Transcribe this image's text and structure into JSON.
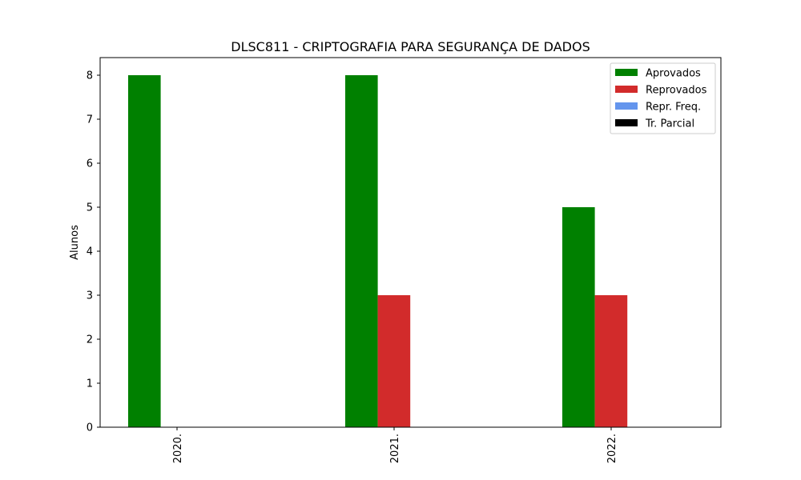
{
  "chart_data": {
    "type": "bar",
    "title": "DLSC811 - CRIPTOGRAFIA PARA SEGURANÇA DE DADOS",
    "xlabel": "",
    "ylabel": "Alunos",
    "categories": [
      "2020.",
      "2021.",
      "2022."
    ],
    "ylim": [
      0,
      8.4
    ],
    "yticks": [
      0,
      1,
      2,
      3,
      4,
      5,
      6,
      7,
      8
    ],
    "legend_position": "top-right",
    "grid": false,
    "series": [
      {
        "name": "Aprovados",
        "color": "#008000",
        "values": [
          8,
          8,
          5
        ]
      },
      {
        "name": "Reprovados",
        "color": "#d22b2b",
        "values": [
          0,
          3,
          3
        ]
      },
      {
        "name": "Repr. Freq.",
        "color": "#6495ed",
        "values": [
          0,
          0,
          0
        ]
      },
      {
        "name": "Tr. Parcial",
        "color": "#000000",
        "values": [
          0,
          0,
          0
        ]
      }
    ]
  }
}
